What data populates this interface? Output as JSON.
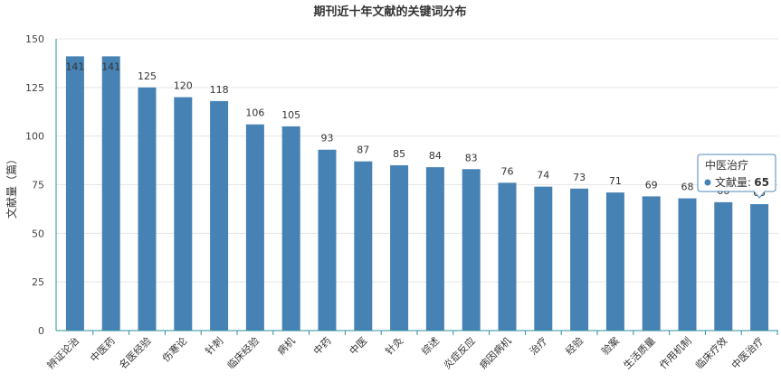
{
  "chart_data": {
    "type": "bar",
    "title": "期刊近十年文献的关键词分布",
    "ylabel": "文献量（篇）",
    "xlabel": "",
    "ylim": [
      0,
      150
    ],
    "yticks": [
      0,
      25,
      50,
      75,
      100,
      125,
      150
    ],
    "grid": true,
    "legend": "none",
    "categories": [
      "辨证论治",
      "中医药",
      "名医经验",
      "伤寒论",
      "针刺",
      "临床经验",
      "病机",
      "中药",
      "中医",
      "针灸",
      "综述",
      "炎症反应",
      "病因病机",
      "治疗",
      "经验",
      "验案",
      "生活质量",
      "作用机制",
      "临床疗效",
      "中医治疗"
    ],
    "series": [
      {
        "name": "文献量",
        "values": [
          141,
          141,
          125,
          120,
          118,
          106,
          105,
          93,
          87,
          85,
          84,
          83,
          76,
          74,
          73,
          71,
          69,
          68,
          66,
          65
        ]
      }
    ],
    "colors": {
      "bar": "#4682b4",
      "axis": "#2f8f9d",
      "grid": "#e6e6e6"
    },
    "tooltip": {
      "category": "中医治疗",
      "series_label": "文献量:",
      "value": "65"
    }
  }
}
